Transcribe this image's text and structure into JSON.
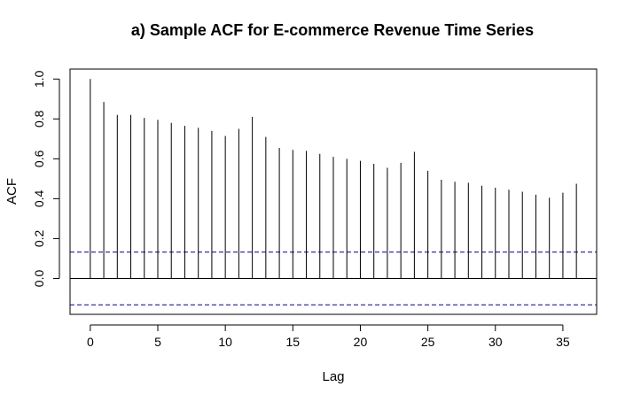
{
  "chart_data": {
    "type": "bar",
    "title": "a) Sample ACF for E-commerce Revenue Time Series",
    "xlabel": "Lag",
    "ylabel": "ACF",
    "x": [
      0,
      1,
      2,
      3,
      4,
      5,
      6,
      7,
      8,
      9,
      10,
      11,
      12,
      13,
      14,
      15,
      16,
      17,
      18,
      19,
      20,
      21,
      22,
      23,
      24,
      25,
      26,
      27,
      28,
      29,
      30,
      31,
      32,
      33,
      34,
      35,
      36
    ],
    "values": [
      1.0,
      0.885,
      0.82,
      0.82,
      0.805,
      0.795,
      0.78,
      0.765,
      0.755,
      0.74,
      0.715,
      0.75,
      0.81,
      0.71,
      0.655,
      0.645,
      0.64,
      0.625,
      0.61,
      0.6,
      0.59,
      0.575,
      0.555,
      0.58,
      0.635,
      0.54,
      0.495,
      0.485,
      0.48,
      0.465,
      0.455,
      0.445,
      0.435,
      0.42,
      0.405,
      0.43,
      0.475
    ],
    "xlim": [
      -1.5,
      37.5
    ],
    "ylim": [
      -0.18,
      1.05
    ],
    "xticks": [
      0,
      5,
      10,
      15,
      20,
      25,
      30,
      35
    ],
    "yticks": [
      0.0,
      0.2,
      0.4,
      0.6,
      0.8,
      1.0
    ],
    "xtick_labels": [
      "0",
      "5",
      "10",
      "15",
      "20",
      "25",
      "30",
      "35"
    ],
    "ytick_labels": [
      "0.0",
      "0.2",
      "0.4",
      "0.6",
      "0.8",
      "1.0"
    ],
    "confidence_bound": 0.132,
    "bound_color": "#00008b",
    "bar_color": "#000000",
    "grid": false
  }
}
